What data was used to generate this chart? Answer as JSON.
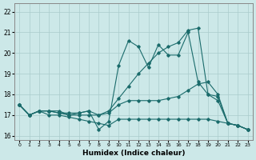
{
  "xlabel": "Humidex (Indice chaleur)",
  "background_color": "#cce8e8",
  "grid_color": "#aacccc",
  "line_color": "#1a6b6b",
  "xlim": [
    -0.5,
    23.5
  ],
  "ylim": [
    15.8,
    22.4
  ],
  "yticks": [
    16,
    17,
    18,
    19,
    20,
    21,
    22
  ],
  "xticks": [
    0,
    1,
    2,
    3,
    4,
    5,
    6,
    7,
    8,
    9,
    10,
    11,
    12,
    13,
    14,
    15,
    16,
    17,
    18,
    19,
    20,
    21,
    22,
    23
  ],
  "series": [
    {
      "x": [
        0,
        1,
        2,
        3,
        4,
        5,
        6,
        7,
        8,
        9,
        10,
        11,
        12,
        13,
        14,
        15,
        16,
        17,
        18,
        19,
        20,
        21,
        22,
        23
      ],
      "y": [
        17.5,
        17.0,
        17.2,
        17.2,
        17.2,
        17.0,
        17.1,
        17.2,
        16.3,
        16.7,
        19.4,
        20.6,
        20.3,
        19.3,
        20.4,
        19.9,
        19.9,
        21.0,
        18.6,
        18.0,
        17.9,
        16.6,
        16.5,
        16.3
      ]
    },
    {
      "x": [
        0,
        1,
        2,
        3,
        4,
        5,
        6,
        7,
        8,
        9,
        10,
        11,
        12,
        13,
        14,
        15,
        16,
        17,
        18,
        19,
        20,
        21,
        22,
        23
      ],
      "y": [
        17.5,
        17.0,
        17.2,
        17.2,
        17.1,
        17.0,
        17.0,
        17.0,
        17.0,
        17.2,
        17.8,
        18.4,
        19.0,
        19.5,
        20.0,
        20.3,
        20.5,
        21.1,
        21.2,
        18.0,
        17.7,
        16.6,
        16.5,
        16.3
      ]
    },
    {
      "x": [
        0,
        1,
        2,
        3,
        4,
        5,
        6,
        7,
        8,
        9,
        10,
        11,
        12,
        13,
        14,
        15,
        16,
        17,
        18,
        19,
        20,
        21,
        22,
        23
      ],
      "y": [
        17.5,
        17.0,
        17.2,
        17.2,
        17.1,
        17.1,
        17.1,
        17.2,
        17.0,
        17.1,
        17.5,
        17.7,
        17.7,
        17.7,
        17.7,
        17.8,
        17.9,
        18.2,
        18.5,
        18.6,
        18.0,
        16.6,
        16.5,
        16.3
      ]
    },
    {
      "x": [
        0,
        1,
        2,
        3,
        4,
        5,
        6,
        7,
        8,
        9,
        10,
        11,
        12,
        13,
        14,
        15,
        16,
        17,
        18,
        19,
        20,
        21,
        22,
        23
      ],
      "y": [
        17.5,
        17.0,
        17.2,
        17.0,
        17.0,
        16.9,
        16.8,
        16.7,
        16.6,
        16.5,
        16.8,
        16.8,
        16.8,
        16.8,
        16.8,
        16.8,
        16.8,
        16.8,
        16.8,
        16.8,
        16.7,
        16.6,
        16.5,
        16.3
      ]
    }
  ]
}
